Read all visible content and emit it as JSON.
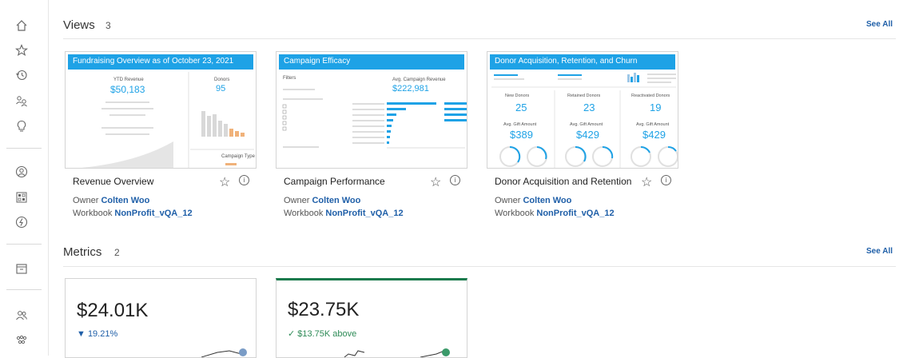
{
  "sidebar": {
    "icons": [
      "home-icon",
      "star-icon",
      "history-icon",
      "shared-icon",
      "recommendations-icon",
      "profile-icon",
      "explore-icon",
      "external-assets-icon",
      "collections-icon",
      "users-icon",
      "groups-icon"
    ]
  },
  "views": {
    "title": "Views",
    "count": "3",
    "see_all": "See All",
    "cards": [
      {
        "thumb_title": "Fundraising Overview as of October 23, 2021",
        "title": "Revenue Overview",
        "owner_label": "Owner",
        "owner": "Colten Woo",
        "workbook_label": "Workbook",
        "workbook": "NonProfit_vQA_12",
        "kpi_label": "YTD Revenue",
        "kpi_value": "$50,183",
        "donors_label": "Donors",
        "donors_value": "95",
        "campaign_label": "Campaign Type"
      },
      {
        "thumb_title": "Campaign Efficacy",
        "title": "Campaign Performance",
        "owner_label": "Owner",
        "owner": "Colten Woo",
        "workbook_label": "Workbook",
        "workbook": "NonProfit_vQA_12",
        "filters_label": "Filters",
        "kpi_label": "Avg. Campaign Revenue",
        "kpi_value": "$222,981"
      },
      {
        "thumb_title": "Donor Acquisition, Retention, and Churn",
        "title": "Donor Acquisition and Retention",
        "owner_label": "Owner",
        "owner": "Colten Woo",
        "workbook_label": "Workbook",
        "workbook": "NonProfit_vQA_12",
        "cols": [
          {
            "label": "New Donors",
            "value": "25",
            "gift_label": "Avg. Gift Amount",
            "gift": "$389"
          },
          {
            "label": "Retained Donors",
            "value": "23",
            "gift_label": "Avg. Gift Amount",
            "gift": "$429"
          },
          {
            "label": "Reactivated Donors",
            "value": "19",
            "gift_label": "Avg. Gift Amount",
            "gift": "$429"
          }
        ]
      }
    ]
  },
  "metrics": {
    "title": "Metrics",
    "count": "2",
    "see_all": "See All",
    "cards": [
      {
        "value": "$24.01K",
        "change": "▼ 19.21%",
        "change_color": "#1f5fa8",
        "accent": ""
      },
      {
        "value": "$23.75K",
        "change": "✓ $13.75K above",
        "change_color": "#2e8b57",
        "accent": "#1a7a4c"
      }
    ]
  },
  "colors": {
    "link": "#1f5fa8",
    "thumb_header": "#1ea2e6"
  }
}
